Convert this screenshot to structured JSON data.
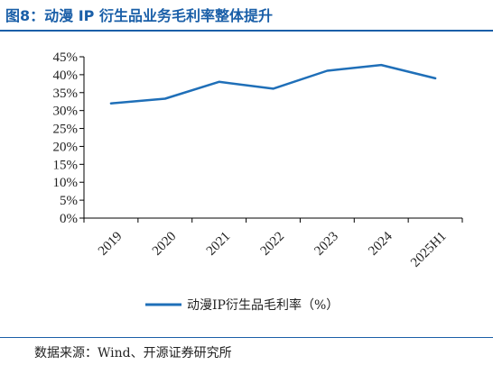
{
  "header": {
    "title": "图8：动漫 IP 衍生品业务毛利率整体提升"
  },
  "footer": {
    "source": "数据来源：Wind、开源证券研究所"
  },
  "chart_data": {
    "type": "line",
    "title": "图8：动漫 IP 衍生品业务毛利率整体提升",
    "xlabel": "",
    "ylabel": "",
    "categories": [
      "2019",
      "2020",
      "2021",
      "2022",
      "2023",
      "2024",
      "2025H1"
    ],
    "series": [
      {
        "name": "动漫IP衍生品毛利率（%）",
        "values": [
          32.0,
          33.3,
          38.0,
          36.1,
          41.1,
          42.7,
          39.0
        ],
        "color": "#1f6fb8"
      }
    ],
    "ylim": [
      0,
      45
    ],
    "yticks": [
      0,
      5,
      10,
      15,
      20,
      25,
      30,
      35,
      40,
      45
    ],
    "ytick_labels": [
      "0%",
      "5%",
      "10%",
      "15%",
      "20%",
      "25%",
      "30%",
      "35%",
      "40%",
      "45%"
    ],
    "grid": false,
    "legend": "bottom-center"
  }
}
